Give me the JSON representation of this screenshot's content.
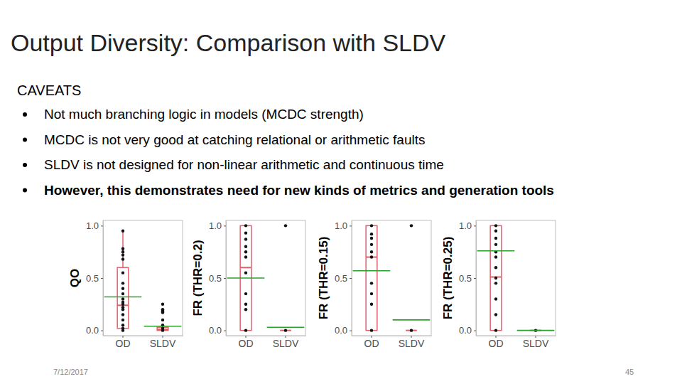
{
  "slide": {
    "title": "Output Diversity: Comparison with SLDV",
    "heading": "CAVEATS",
    "bullets": [
      "Not much branching logic in models (MCDC strength)",
      "MCDC is not very good at catching relational or arithmetic faults",
      "SLDV is not designed for non-linear arithmetic and continuous time",
      "However, this demonstrates need for new kinds of metrics and generation tools"
    ],
    "date": "7/12/2017",
    "page": "45"
  },
  "chart_data": [
    {
      "type": "box",
      "y_label": "QO",
      "categories": [
        "OD",
        "SLDV"
      ],
      "color": "#e0606a",
      "grid": false,
      "ylim": [
        -0.05,
        1.05
      ],
      "yticks": [
        {
          "value": 0,
          "label": "0.0"
        },
        {
          "value": 0.5,
          "label": "0.5"
        },
        {
          "value": 1,
          "label": "1.0"
        }
      ],
      "box": [
        {
          "low": 0,
          "q1": 0.02,
          "median": 0.24,
          "q3": 0.6,
          "high": 0.95
        },
        {
          "low": 0,
          "q1": 0,
          "median": 0.01,
          "q3": 0.03,
          "high": 0.06
        }
      ],
      "mean": [
        0.32,
        0.04
      ],
      "points": [
        [
          0.95,
          0.78,
          0.75,
          0.72,
          0.68,
          0.55,
          0.45,
          0.4,
          0.35,
          0.3,
          0.27,
          0.25,
          0.22,
          0.2,
          0.15,
          0.1,
          0.05,
          0.02,
          0
        ],
        [
          0.25,
          0.2,
          0.19,
          0.18,
          0.17,
          0.1,
          0.05,
          0.02,
          0
        ]
      ]
    },
    {
      "type": "box",
      "y_label": "FR (THR=0.2)",
      "categories": [
        "OD",
        "SLDV"
      ],
      "color": "#e0606a",
      "grid": false,
      "ylim": [
        -0.05,
        1.05
      ],
      "yticks": [
        {
          "value": 0,
          "label": "0.0"
        },
        {
          "value": 0.5,
          "label": "0.5"
        },
        {
          "value": 1,
          "label": "1.0"
        }
      ],
      "box": [
        {
          "low": 0,
          "q1": 0,
          "median": 0.6,
          "q3": 1,
          "high": 1
        },
        {
          "low": 0,
          "q1": 0,
          "median": 0,
          "q3": 0,
          "high": 0
        }
      ],
      "mean": [
        0.5,
        0.03
      ],
      "points": [
        [
          1,
          0.93,
          0.87,
          0.8,
          0.75,
          0.7,
          0.55,
          0.35,
          0.25,
          0.2,
          0
        ],
        [
          1,
          0
        ]
      ]
    },
    {
      "type": "box",
      "y_label": "FR (THR=0.15)",
      "categories": [
        "OD",
        "SLDV"
      ],
      "color": "#e0606a",
      "grid": false,
      "ylim": [
        -0.05,
        1.05
      ],
      "yticks": [
        {
          "value": 0,
          "label": "0.0"
        },
        {
          "value": 0.5,
          "label": "0.5"
        },
        {
          "value": 1,
          "label": "1.0"
        }
      ],
      "box": [
        {
          "low": 0,
          "q1": 0,
          "median": 0.7,
          "q3": 1,
          "high": 1
        },
        {
          "low": 0,
          "q1": 0,
          "median": 0,
          "q3": 0,
          "high": 0
        }
      ],
      "mean": [
        0.57,
        0.1
      ],
      "points": [
        [
          1,
          0.92,
          0.88,
          0.82,
          0.75,
          0.7,
          0.45,
          0.35,
          0.25,
          0
        ],
        [
          1,
          0
        ]
      ]
    },
    {
      "type": "box",
      "y_label": "FR (THR=0.25)",
      "categories": [
        "OD",
        "SLDV"
      ],
      "color": "#e0606a",
      "grid": false,
      "ylim": [
        -0.05,
        1.05
      ],
      "yticks": [
        {
          "value": 0,
          "label": "0.0"
        },
        {
          "value": 0.5,
          "label": "0.5"
        },
        {
          "value": 1,
          "label": "1.0"
        }
      ],
      "box": [
        {
          "low": 0,
          "q1": 0,
          "median": 0.51,
          "q3": 1,
          "high": 1
        },
        {
          "low": 0,
          "q1": 0,
          "median": 0,
          "q3": 0,
          "high": 0
        }
      ],
      "mean": [
        0.76,
        0
      ],
      "points": [
        [
          1,
          0.95,
          0.88,
          0.82,
          0.75,
          0.7,
          0.6,
          0.5,
          0.45,
          0.3,
          0.15,
          0
        ],
        [
          0
        ]
      ]
    }
  ]
}
